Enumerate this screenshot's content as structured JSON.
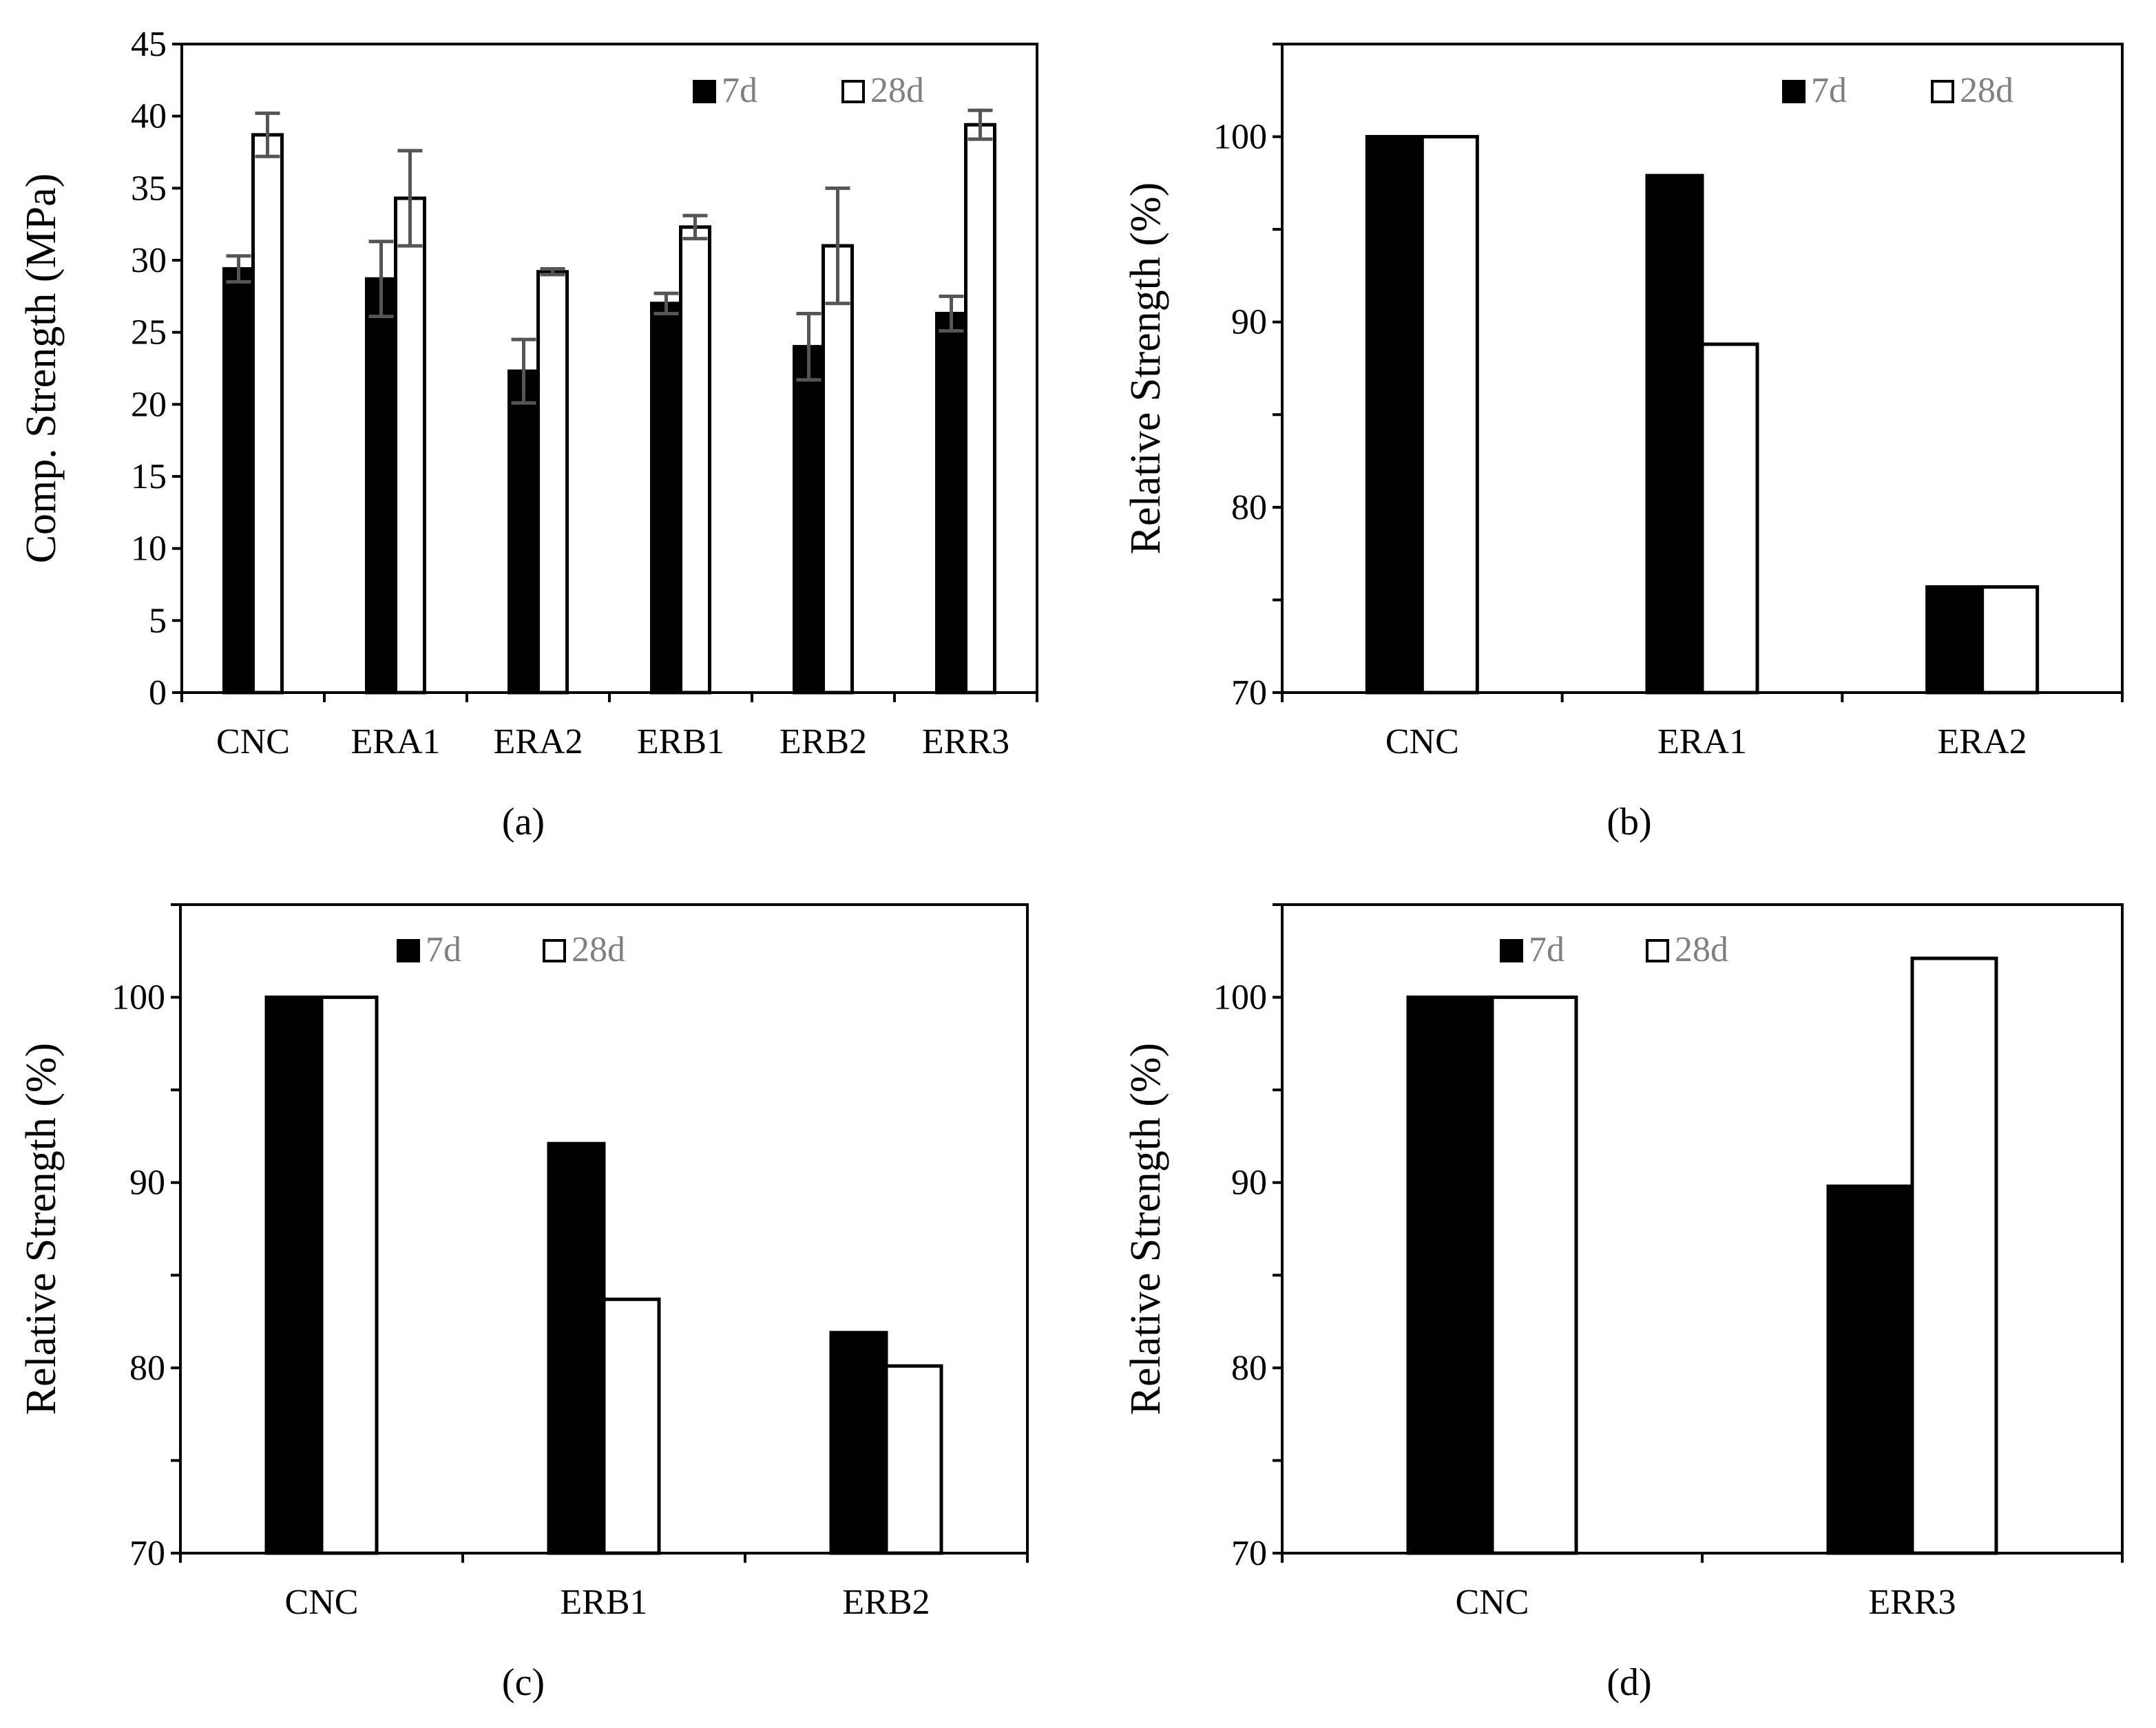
{
  "chart_data": [
    {
      "id": "a",
      "type": "bar",
      "caption": "(a)",
      "ylabel": "Comp. Strength (MPa)",
      "xlabel": "",
      "ylim": [
        0,
        45
      ],
      "ytick_step": 5,
      "categories": [
        "CNC",
        "ERA1",
        "ERA2",
        "ERB1",
        "ERB2",
        "ERR3"
      ],
      "series": [
        {
          "name": "7d",
          "fill": "#000000",
          "values": [
            29.4,
            28.7,
            22.3,
            27.0,
            24.0,
            26.3
          ],
          "errors": [
            0.9,
            2.6,
            2.2,
            0.7,
            2.3,
            1.2
          ]
        },
        {
          "name": "28d",
          "fill": "#ffffff",
          "values": [
            38.7,
            34.3,
            29.2,
            32.3,
            31.0,
            39.4
          ],
          "errors": [
            1.5,
            3.3,
            0.2,
            0.8,
            4.0,
            1.0
          ]
        }
      ],
      "legend_position": "top-right"
    },
    {
      "id": "b",
      "type": "bar",
      "caption": "(b)",
      "ylabel": "Relative Strength (%)",
      "xlabel": "",
      "ylim": [
        70,
        105
      ],
      "ytick_step": 10,
      "ytick_max": 100,
      "categories": [
        "CNC",
        "ERA1",
        "ERA2"
      ],
      "series": [
        {
          "name": "7d",
          "fill": "#000000",
          "values": [
            100,
            97.9,
            75.7
          ]
        },
        {
          "name": "28d",
          "fill": "#ffffff",
          "values": [
            100,
            88.8,
            75.7
          ]
        }
      ],
      "legend_position": "top-right"
    },
    {
      "id": "c",
      "type": "bar",
      "caption": "(c)",
      "ylabel": "Relative Strength (%)",
      "xlabel": "",
      "ylim": [
        70,
        105
      ],
      "ytick_step": 10,
      "ytick_max": 100,
      "categories": [
        "CNC",
        "ERB1",
        "ERB2"
      ],
      "series": [
        {
          "name": "7d",
          "fill": "#000000",
          "values": [
            100,
            92.1,
            81.9
          ]
        },
        {
          "name": "28d",
          "fill": "#ffffff",
          "values": [
            100,
            83.7,
            80.1
          ]
        }
      ],
      "legend_position": "top-center"
    },
    {
      "id": "d",
      "type": "bar",
      "caption": "(d)",
      "ylabel": "Relative Strength (%)",
      "xlabel": "",
      "ylim": [
        70,
        105
      ],
      "ytick_step": 10,
      "ytick_max": 100,
      "categories": [
        "CNC",
        "ERR3"
      ],
      "series": [
        {
          "name": "7d",
          "fill": "#000000",
          "values": [
            100,
            89.8
          ]
        },
        {
          "name": "28d",
          "fill": "#ffffff",
          "values": [
            100,
            102.1
          ]
        }
      ],
      "legend_position": "top-center"
    }
  ],
  "colors": {
    "axis": "#000000",
    "error_bar": "#555555",
    "legend_text": "#808080"
  }
}
